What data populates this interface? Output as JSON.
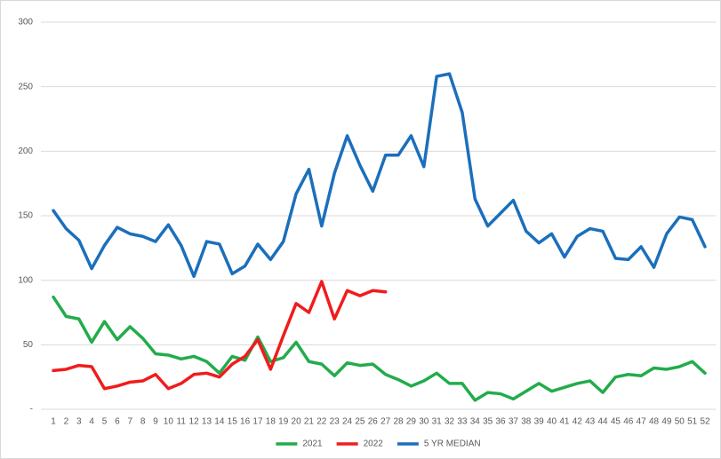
{
  "chart_data": {
    "type": "line",
    "categories": [
      1,
      2,
      3,
      4,
      5,
      6,
      7,
      8,
      9,
      10,
      11,
      12,
      13,
      14,
      15,
      16,
      17,
      18,
      19,
      20,
      21,
      22,
      23,
      24,
      25,
      26,
      27,
      28,
      29,
      30,
      31,
      32,
      33,
      34,
      35,
      36,
      37,
      38,
      39,
      40,
      41,
      42,
      43,
      44,
      45,
      46,
      47,
      48,
      49,
      50,
      51,
      52
    ],
    "series": [
      {
        "name": "2021",
        "color": "#22ac4b",
        "values": [
          87,
          72,
          70,
          52,
          68,
          54,
          64,
          55,
          43,
          42,
          39,
          41,
          37,
          28,
          41,
          38,
          56,
          37,
          40,
          52,
          37,
          35,
          26,
          36,
          34,
          35,
          27,
          23,
          18,
          22,
          28,
          20,
          20,
          7,
          13,
          12,
          8,
          14,
          20,
          14,
          17,
          20,
          22,
          13,
          25,
          27,
          26,
          32,
          31,
          33,
          37,
          28
        ]
      },
      {
        "name": "2022",
        "color": "#f01c1c",
        "values": [
          30,
          31,
          34,
          33,
          16,
          18,
          21,
          22,
          27,
          16,
          20,
          27,
          28,
          25,
          35,
          41,
          54,
          31,
          57,
          82,
          75,
          99,
          70,
          92,
          88,
          92,
          91,
          null,
          null,
          null,
          null,
          null,
          null,
          null,
          null,
          null,
          null,
          null,
          null,
          null,
          null,
          null,
          null,
          null,
          null,
          null,
          null,
          null,
          null,
          null,
          null,
          null
        ]
      },
      {
        "name": "5 YR MEDIAN",
        "color": "#1b6fbb",
        "values": [
          154,
          140,
          131,
          109,
          127,
          141,
          136,
          134,
          130,
          143,
          127,
          103,
          130,
          128,
          105,
          111,
          128,
          116,
          130,
          167,
          186,
          142,
          183,
          212,
          189,
          169,
          197,
          197,
          212,
          188,
          258,
          260,
          230,
          163,
          142,
          152,
          162,
          138,
          129,
          136,
          118,
          134,
          140,
          138,
          117,
          116,
          126,
          110,
          136,
          149,
          147,
          126
        ]
      }
    ],
    "ylim": [
      0,
      300
    ],
    "yticks": [
      {
        "value": 0,
        "label": "-"
      },
      50,
      100,
      150,
      200,
      250,
      300
    ],
    "grid": true,
    "legend": "bottom"
  }
}
